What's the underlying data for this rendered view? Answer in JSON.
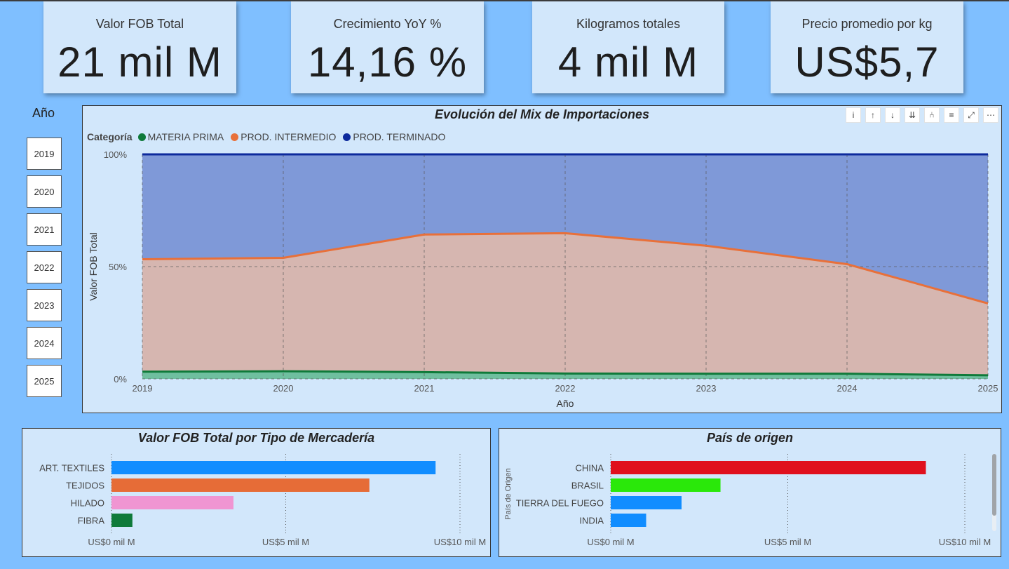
{
  "kpis": [
    {
      "label": "Valor FOB Total",
      "value": "21 mil M"
    },
    {
      "label": "Crecimiento YoY %",
      "value": "14,16 %"
    },
    {
      "label": "Kilogramos totales",
      "value": "4 mil M"
    },
    {
      "label": "Precio promedio por kg",
      "value": "US$5,7"
    }
  ],
  "slicer": {
    "title": "Año",
    "items": [
      "2019",
      "2020",
      "2021",
      "2022",
      "2023",
      "2024",
      "2025"
    ]
  },
  "toolbar": {
    "icons": [
      "info-icon",
      "arrow-up-icon",
      "arrow-down-icon",
      "double-arrow-down-icon",
      "expand-hierarchy-icon",
      "filter-icon",
      "focus-mode-icon",
      "more-options-icon"
    ],
    "glyphs": [
      "i",
      "↑",
      "↓",
      "⇊",
      "⑃",
      "≡",
      "⤢",
      "⋯"
    ]
  },
  "chart_data": [
    {
      "type": "area",
      "stacked": "100%",
      "title": "Evolución del Mix de Importaciones",
      "legend_title": "Categoría",
      "legend_position": "top-left",
      "xlabel": "Año",
      "ylabel": "Valor FOB Total",
      "x": [
        "2019",
        "2020",
        "2021",
        "2022",
        "2023",
        "2024",
        "2025"
      ],
      "y_ticks": [
        "0%",
        "50%",
        "100%"
      ],
      "ylim": [
        0,
        100
      ],
      "grid": true,
      "series": [
        {
          "name": "MATERIA PRIMA",
          "color": "#0f7a3a",
          "fill": "#6fbf9f",
          "values": [
            3.2,
            3.4,
            3.0,
            2.4,
            2.3,
            2.3,
            1.6
          ]
        },
        {
          "name": "PROD. INTERMEDIO",
          "color": "#e8703a",
          "fill": "#d6b6b0",
          "values": [
            50.1,
            50.5,
            61.3,
            62.5,
            57.0,
            48.8,
            32.0
          ]
        },
        {
          "name": "PROD. TERMINADO",
          "color": "#0d2a9c",
          "fill": "#7f99d8",
          "values": [
            46.7,
            46.1,
            35.7,
            35.1,
            40.7,
            48.9,
            66.4
          ]
        }
      ]
    },
    {
      "type": "bar",
      "orientation": "horizontal",
      "title": "Valor FOB Total por Tipo de Mercadería",
      "categories": [
        "ART. TEXTILES",
        "TEJIDOS",
        "HILADO",
        "FIBRA"
      ],
      "values": [
        9.3,
        7.4,
        3.5,
        0.6
      ],
      "colors": [
        "#118dff",
        "#e66c37",
        "#f095d2",
        "#0f7a3a"
      ],
      "x_ticks": [
        "US$0 mil M",
        "US$5 mil M",
        "US$10 mil M"
      ],
      "xlim": [
        0,
        10
      ],
      "grid": true
    },
    {
      "type": "bar",
      "orientation": "horizontal",
      "title": "País de origen",
      "ylabel": "País de Origen",
      "categories": [
        "CHINA",
        "BRASIL",
        "TIERRA DEL FUEGO",
        "INDIA"
      ],
      "values": [
        8.9,
        3.1,
        2.0,
        1.0
      ],
      "colors": [
        "#e0101d",
        "#2ae80a",
        "#118dff",
        "#118dff"
      ],
      "x_ticks": [
        "US$0 mil M",
        "US$5 mil M",
        "US$10 mil M"
      ],
      "xlim": [
        0,
        10
      ],
      "grid": true
    }
  ]
}
